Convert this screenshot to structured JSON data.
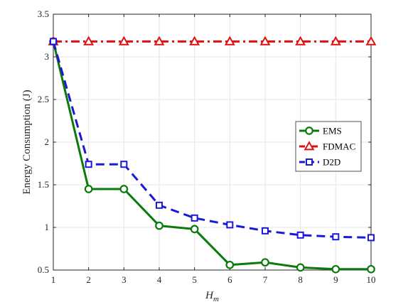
{
  "chart_data": {
    "type": "line",
    "title": "",
    "xlabel": "H",
    "xlabel_sub": "m",
    "ylabel": "Energy Consumption (J)",
    "x": [
      1,
      2,
      3,
      4,
      5,
      6,
      7,
      8,
      9,
      10
    ],
    "xlim": [
      1,
      10
    ],
    "ylim": [
      0.5,
      3.5
    ],
    "xticks": [
      1,
      2,
      3,
      4,
      5,
      6,
      7,
      8,
      9,
      10
    ],
    "yticks": [
      0.5,
      1,
      1.5,
      2,
      2.5,
      3,
      3.5
    ],
    "ytick_labels": [
      "0.5",
      "1",
      "1.5",
      "2",
      "2.5",
      "3",
      "3.5"
    ],
    "grid": true,
    "legend_position": "right",
    "series": [
      {
        "name": "EMS",
        "color": "#0b7a0b",
        "line_style": "solid",
        "marker": "circle",
        "values": [
          3.18,
          1.45,
          1.45,
          1.02,
          0.98,
          0.56,
          0.59,
          0.53,
          0.51,
          0.51
        ]
      },
      {
        "name": "FDMAC",
        "color": "#e01010",
        "line_style": "dash-dot",
        "marker": "triangle",
        "values": [
          3.18,
          3.18,
          3.18,
          3.18,
          3.18,
          3.18,
          3.18,
          3.18,
          3.18,
          3.18
        ]
      },
      {
        "name": "D2D",
        "color": "#1a1ad6",
        "line_style": "dashed",
        "marker": "square",
        "values": [
          3.18,
          1.74,
          1.74,
          1.26,
          1.11,
          1.03,
          0.96,
          0.91,
          0.89,
          0.88
        ]
      }
    ]
  }
}
